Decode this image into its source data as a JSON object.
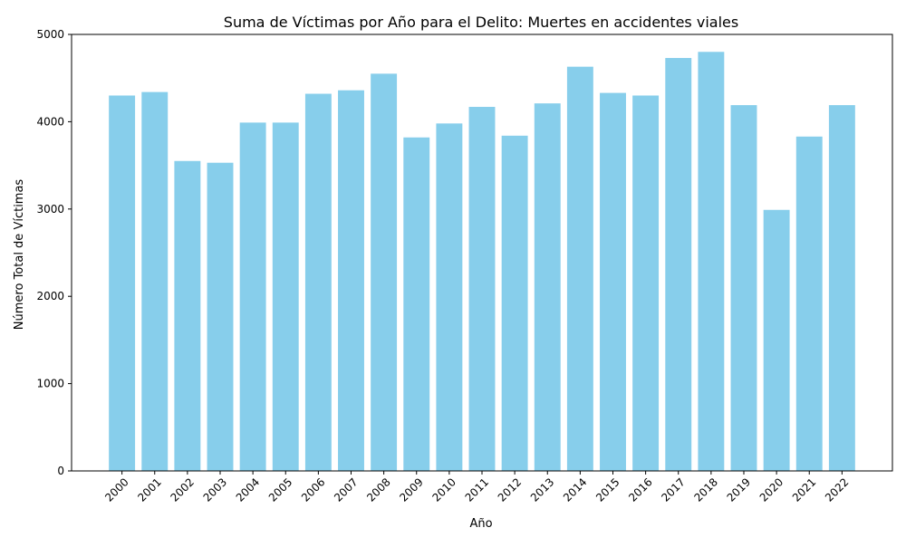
{
  "chart_data": {
    "type": "bar",
    "title": "Suma de Víctimas por Año para el Delito: Muertes en accidentes viales",
    "xlabel": "Año",
    "ylabel": "Número Total de Víctimas",
    "categories": [
      "2000",
      "2001",
      "2002",
      "2003",
      "2004",
      "2005",
      "2006",
      "2007",
      "2008",
      "2009",
      "2010",
      "2011",
      "2012",
      "2013",
      "2014",
      "2015",
      "2016",
      "2017",
      "2018",
      "2019",
      "2020",
      "2021",
      "2022"
    ],
    "values": [
      4300,
      4340,
      3550,
      3530,
      3990,
      3990,
      4320,
      4360,
      4550,
      3820,
      3980,
      4170,
      3840,
      4210,
      4630,
      4330,
      4300,
      4730,
      4800,
      4190,
      2990,
      3830,
      4190
    ],
    "ylim": [
      0,
      5000
    ],
    "yticks": [
      0,
      1000,
      2000,
      3000,
      4000,
      5000
    ],
    "bar_color": "#87CEEB",
    "grid": false,
    "legend": "none"
  }
}
